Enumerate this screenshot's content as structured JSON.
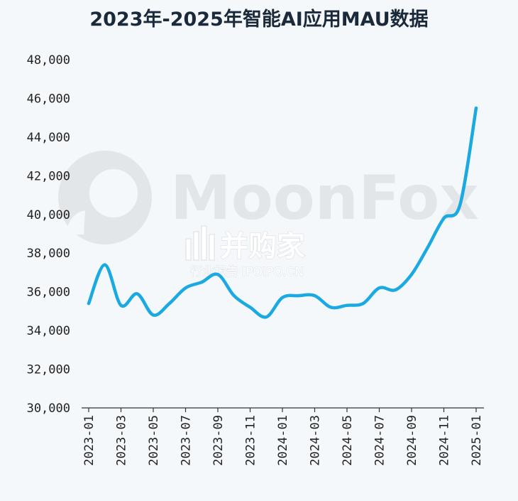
{
  "chart_data": {
    "type": "line",
    "title": "2023年-2025年智能AI应用MAU数据",
    "xlabel": "",
    "ylabel": "",
    "ylim": [
      30000,
      48000
    ],
    "yticks": [
      "30,000",
      "32,000",
      "34,000",
      "36,000",
      "38,000",
      "40,000",
      "42,000",
      "44,000",
      "46,000",
      "48,000"
    ],
    "xticks": [
      "2023-01",
      "2023-03",
      "2023-05",
      "2023-07",
      "2023-09",
      "2023-11",
      "2024-01",
      "2024-03",
      "2024-05",
      "2024-07",
      "2024-09",
      "2024-11",
      "2025-01"
    ],
    "grid": false,
    "line_color": "#1aa9e0",
    "series": [
      {
        "name": "",
        "x": [
          "2023-01",
          "2023-02",
          "2023-03",
          "2023-04",
          "2023-05",
          "2023-06",
          "2023-07",
          "2023-08",
          "2023-09",
          "2023-10",
          "2023-11",
          "2023-12",
          "2024-01",
          "2024-02",
          "2024-03",
          "2024-04",
          "2024-05",
          "2024-06",
          "2024-07",
          "2024-08",
          "2024-09",
          "2024-10",
          "2024-11",
          "2024-12",
          "2025-01"
        ],
        "values": [
          35400,
          37400,
          35300,
          35900,
          34800,
          35400,
          36200,
          36500,
          36900,
          35800,
          35200,
          34700,
          35700,
          35800,
          35800,
          35200,
          35300,
          35400,
          36200,
          36100,
          36900,
          38300,
          39800,
          40500,
          45500
        ]
      }
    ]
  },
  "watermark": {
    "brand": "MoonFox",
    "cn": "并购家",
    "sub": "行业报告 IPOIPO.CN"
  }
}
